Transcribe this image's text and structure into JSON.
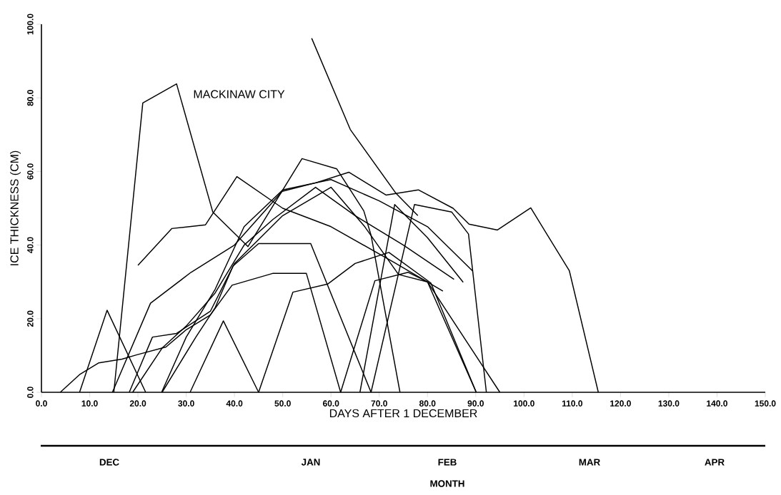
{
  "chart_data": {
    "type": "line",
    "xlabel": "DAYS AFTER 1 DECEMBER",
    "ylabel": "ICE THICKNESS (CM)",
    "xlim": [
      0,
      150
    ],
    "ylim": [
      0,
      100
    ],
    "xticks": [
      {
        "value": 0,
        "label": "0.0"
      },
      {
        "value": 10,
        "label": "10.0"
      },
      {
        "value": 20,
        "label": "20.0"
      },
      {
        "value": 30,
        "label": "30.0"
      },
      {
        "value": 40,
        "label": "40.0"
      },
      {
        "value": 50,
        "label": "50.0"
      },
      {
        "value": 60,
        "label": "60.0"
      },
      {
        "value": 70,
        "label": "70.0"
      },
      {
        "value": 80,
        "label": "80.0"
      },
      {
        "value": 90,
        "label": "90.0"
      },
      {
        "value": 100,
        "label": "100.0"
      },
      {
        "value": 110,
        "label": "110.0"
      },
      {
        "value": 120,
        "label": "120.0"
      },
      {
        "value": 130,
        "label": "130.0"
      },
      {
        "value": 140,
        "label": "140.0"
      },
      {
        "value": 150,
        "label": "150.0"
      }
    ],
    "yticks": [
      {
        "value": 0,
        "label": "0.0"
      },
      {
        "value": 20,
        "label": "20.0"
      },
      {
        "value": 40,
        "label": "40.0"
      },
      {
        "value": 60,
        "label": "60.0"
      },
      {
        "value": 80,
        "label": "80.0"
      },
      {
        "value": 100,
        "label": "100.0"
      }
    ],
    "marker": "none",
    "line_style": "solid",
    "annotations": [
      "MACKINAW CITY",
      "DEC",
      "JAN",
      "FEB",
      "MAR",
      "APR",
      "MONTH"
    ],
    "series": [
      {
        "color": "#000000",
        "x": [
          15,
          21,
          28,
          35.5,
          42.8,
          54,
          61.2,
          66.8,
          68.3,
          74.3
        ],
        "values": [
          0,
          78.6,
          83.8,
          49,
          39.6,
          63.5,
          60.7,
          49.3,
          42.7,
          0
        ]
      },
      {
        "color": "#000000",
        "x": [
          56,
          64,
          73.5,
          78
        ],
        "values": [
          96.2,
          71.4,
          54,
          48
        ]
      },
      {
        "color": "#000000",
        "x": [
          20,
          27,
          34,
          40.5,
          50,
          60,
          73.2,
          83.2
        ],
        "values": [
          34.5,
          44.5,
          45.5,
          58.6,
          50,
          45,
          35.2,
          27.5
        ]
      },
      {
        "color": "#000000",
        "x": [
          14.7,
          22.6,
          31,
          40,
          49.9,
          56.8,
          63.7,
          71.4,
          78.1,
          85.3,
          88.6,
          94.5,
          101.4,
          109.4,
          115.4
        ],
        "values": [
          0,
          24.2,
          32.6,
          40,
          54.6,
          56.9,
          59.8,
          53.6,
          55,
          50,
          45.7,
          44.1,
          50.1,
          33,
          0
        ]
      },
      {
        "color": "#000000",
        "x": [
          7.9,
          13.6,
          21.6
        ],
        "values": [
          0,
          22.3,
          0
        ]
      },
      {
        "color": "#000000",
        "x": [
          30.8,
          37.7,
          45
        ],
        "values": [
          0,
          19.4,
          0
        ]
      },
      {
        "color": "#000000",
        "x": [
          3.9,
          7.9,
          11.9,
          16.7,
          19.8,
          25.8,
          30,
          35,
          39.5,
          47.9,
          54.9,
          62
        ],
        "values": [
          0,
          4.8,
          8,
          9,
          10.2,
          12.3,
          17,
          21,
          29.1,
          32.3,
          32.3,
          0
        ]
      },
      {
        "color": "#000000",
        "x": [
          25,
          32,
          36,
          39.7,
          45,
          55.8,
          68.3
        ],
        "values": [
          0,
          15,
          23,
          34.3,
          40.4,
          40.4,
          0
        ]
      },
      {
        "color": "#000000",
        "x": [
          45,
          52.1,
          59.3,
          65,
          72,
          80.7,
          90.1
        ],
        "values": [
          0,
          27.2,
          29.4,
          35,
          38,
          29.7,
          0
        ]
      },
      {
        "color": "#000000",
        "x": [
          62,
          69.1,
          76,
          80,
          95
        ],
        "values": [
          0,
          30.3,
          32.6,
          30,
          0
        ]
      },
      {
        "color": "#000000",
        "x": [
          68.3,
          77.3,
          85,
          88.5,
          92.2
        ],
        "values": [
          0,
          51,
          49,
          43,
          0
        ]
      },
      {
        "color": "#000000",
        "x": [
          66,
          73.2,
          80,
          87.4
        ],
        "values": [
          0,
          51,
          42,
          29.9
        ]
      },
      {
        "color": "#000000",
        "x": [
          18.2,
          23,
          28,
          35,
          40,
          50,
          60,
          67,
          74,
          80,
          90.1
        ],
        "values": [
          0,
          15,
          16,
          22,
          35,
          48,
          55.7,
          45,
          32,
          30,
          0
        ]
      },
      {
        "color": "#000000",
        "x": [
          18.9,
          25,
          30,
          36,
          42,
          48,
          56.8,
          65,
          75,
          85.5
        ],
        "values": [
          0,
          12,
          18,
          27,
          40,
          47,
          55.7,
          48,
          40,
          30.7
        ]
      },
      {
        "color": "#000000",
        "x": [
          24.9,
          30,
          36,
          42,
          50,
          60,
          70,
          80,
          89.4
        ],
        "values": [
          0,
          15,
          28,
          45,
          55,
          57.8,
          52,
          45,
          32.9
        ]
      }
    ]
  }
}
